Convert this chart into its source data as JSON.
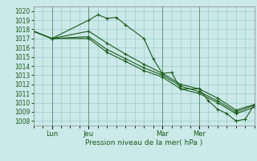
{
  "xlabel": "Pression niveau de la mer( hPa )",
  "xlim": [
    0,
    72
  ],
  "ylim": [
    1007.5,
    1020.5
  ],
  "yticks": [
    1008,
    1009,
    1010,
    1011,
    1012,
    1013,
    1014,
    1015,
    1016,
    1017,
    1018,
    1019,
    1020
  ],
  "xtick_positions": [
    6,
    18,
    42,
    54
  ],
  "xtick_labels": [
    "Lun",
    "Jeu",
    "Mar",
    "Mer"
  ],
  "vlines": [
    6,
    18,
    42,
    54
  ],
  "background_color": "#cce9e9",
  "grid_color": "#99cccc",
  "line_color": "#1a5c1a",
  "series": [
    {
      "x": [
        0,
        6,
        18,
        21,
        24,
        27,
        30,
        36,
        39,
        42,
        45,
        48,
        54,
        57,
        60,
        63,
        66,
        69,
        72
      ],
      "y": [
        1017.8,
        1017.0,
        1019.0,
        1019.6,
        1019.2,
        1019.3,
        1018.5,
        1017.0,
        1014.8,
        1013.2,
        1013.3,
        1011.5,
        1011.5,
        1010.2,
        1009.3,
        1008.8,
        1008.0,
        1008.2,
        1009.8
      ]
    },
    {
      "x": [
        0,
        6,
        18,
        24,
        30,
        36,
        42,
        48,
        54,
        60,
        66,
        72
      ],
      "y": [
        1017.8,
        1017.0,
        1017.8,
        1016.5,
        1015.3,
        1014.2,
        1013.2,
        1012.0,
        1011.5,
        1010.5,
        1009.2,
        1009.8
      ]
    },
    {
      "x": [
        0,
        6,
        18,
        24,
        30,
        36,
        42,
        48,
        54,
        60,
        66,
        72
      ],
      "y": [
        1017.8,
        1017.0,
        1017.2,
        1015.8,
        1014.8,
        1013.8,
        1013.0,
        1011.8,
        1011.2,
        1010.2,
        1009.0,
        1009.7
      ]
    },
    {
      "x": [
        0,
        6,
        18,
        24,
        30,
        36,
        42,
        48,
        54,
        60,
        66,
        72
      ],
      "y": [
        1017.8,
        1017.0,
        1017.0,
        1015.5,
        1014.5,
        1013.5,
        1012.8,
        1011.5,
        1011.0,
        1010.0,
        1008.8,
        1009.5
      ]
    }
  ]
}
